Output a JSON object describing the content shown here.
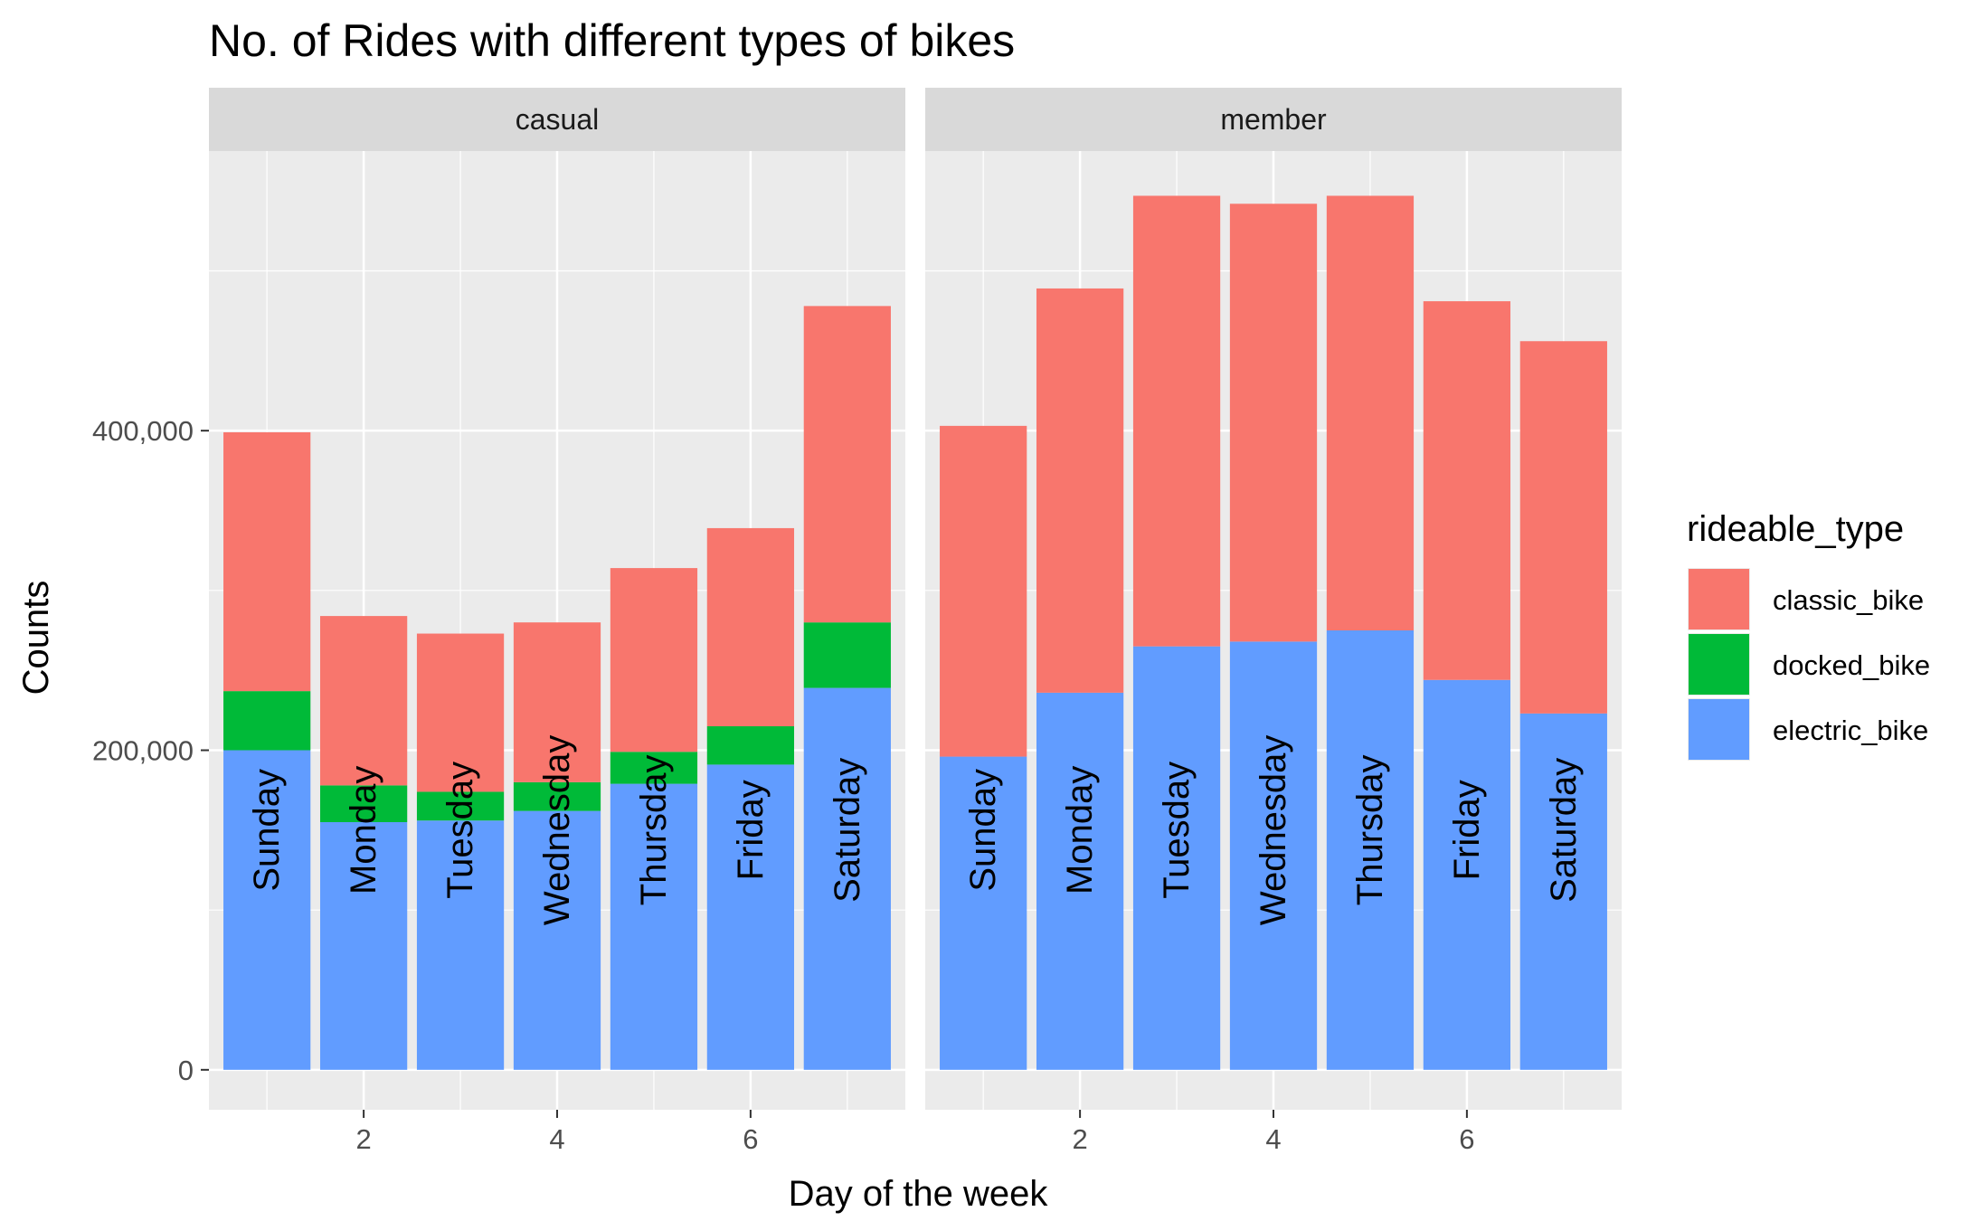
{
  "chart_data": {
    "type": "bar",
    "stacked": true,
    "title": "No. of Rides with different types of bikes",
    "xlabel": "Day of the week",
    "ylabel": "Counts",
    "x": [
      1,
      2,
      3,
      4,
      5,
      6,
      7
    ],
    "xticks": [
      "2",
      "4",
      "6"
    ],
    "yticks": [
      "0",
      "200,000",
      "400,000"
    ],
    "ylim": [
      -25000,
      575000
    ],
    "xlim": [
      0.4,
      7.6
    ],
    "grid": true,
    "legend": {
      "title": "rideable_type",
      "placement": "right",
      "entries": [
        "classic_bike",
        "docked_bike",
        "electric_bike"
      ]
    },
    "colors": {
      "classic_bike": "#F8766D",
      "docked_bike": "#00BA38",
      "electric_bike": "#619CFF",
      "panel_bg": "#EBEBEB",
      "strip_bg": "#D9D9D9",
      "grid": "#FFFFFF"
    },
    "panels": [
      {
        "label": "casual",
        "day_labels": [
          "Sunday",
          "Monday",
          "Tuesday",
          "Wednesday",
          "Thursday",
          "Friday",
          "Saturday"
        ],
        "series": [
          {
            "name": "electric_bike",
            "values": [
              200000,
              155000,
              156000,
              162000,
              179000,
              191000,
              239000
            ]
          },
          {
            "name": "docked_bike",
            "values": [
              37000,
              23000,
              18000,
              18000,
              20000,
              24000,
              41000
            ]
          },
          {
            "name": "classic_bike",
            "values": [
              162000,
              106000,
              99000,
              100000,
              115000,
              124000,
              198000
            ]
          }
        ]
      },
      {
        "label": "member",
        "day_labels": [
          "Sunday",
          "Monday",
          "Tuesday",
          "Wednesday",
          "Thursday",
          "Friday",
          "Saturday"
        ],
        "series": [
          {
            "name": "electric_bike",
            "values": [
              196000,
              236000,
              265000,
              268000,
              275000,
              244000,
              223000
            ]
          },
          {
            "name": "docked_bike",
            "values": [
              0,
              0,
              0,
              0,
              0,
              0,
              0
            ]
          },
          {
            "name": "classic_bike",
            "values": [
              207000,
              253000,
              282000,
              274000,
              272000,
              237000,
              233000
            ]
          }
        ]
      }
    ]
  }
}
